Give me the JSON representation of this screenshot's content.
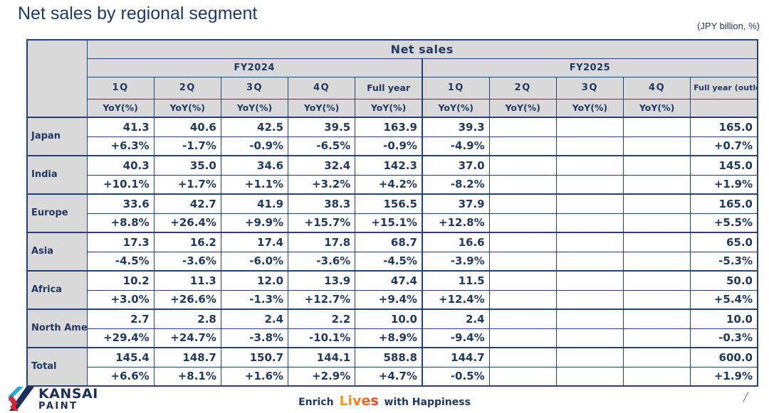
{
  "page": {
    "title": "Net sales by regional segment",
    "unit_note": "(JPY billion, %)",
    "page_divider": "/"
  },
  "table": {
    "title": "Net sales",
    "yoy_label": "YoY(%)",
    "groups": [
      {
        "label": "FY2024",
        "quarters": [
          "1Q",
          "2Q",
          "3Q",
          "4Q",
          "Full year"
        ]
      },
      {
        "label": "FY2025",
        "quarters": [
          "1Q",
          "2Q",
          "3Q",
          "4Q",
          "Full year (outlook)"
        ]
      }
    ],
    "rows": [
      {
        "region": "Japan",
        "values": [
          "41.3",
          "40.6",
          "42.5",
          "39.5",
          "163.9",
          "39.3",
          "",
          "",
          "",
          "165.0"
        ],
        "yoy": [
          "+6.3%",
          "-1.7%",
          "-0.9%",
          "-6.5%",
          "-0.9%",
          "-4.9%",
          "",
          "",
          "",
          "+0.7%"
        ]
      },
      {
        "region": "India",
        "values": [
          "40.3",
          "35.0",
          "34.6",
          "32.4",
          "142.3",
          "37.0",
          "",
          "",
          "",
          "145.0"
        ],
        "yoy": [
          "+10.1%",
          "+1.7%",
          "+1.1%",
          "+3.2%",
          "+4.2%",
          "-8.2%",
          "",
          "",
          "",
          "+1.9%"
        ]
      },
      {
        "region": "Europe",
        "values": [
          "33.6",
          "42.7",
          "41.9",
          "38.3",
          "156.5",
          "37.9",
          "",
          "",
          "",
          "165.0"
        ],
        "yoy": [
          "+8.8%",
          "+26.4%",
          "+9.9%",
          "+15.7%",
          "+15.1%",
          "+12.8%",
          "",
          "",
          "",
          "+5.5%"
        ]
      },
      {
        "region": "Asia",
        "values": [
          "17.3",
          "16.2",
          "17.4",
          "17.8",
          "68.7",
          "16.6",
          "",
          "",
          "",
          "65.0"
        ],
        "yoy": [
          "-4.5%",
          "-3.6%",
          "-6.0%",
          "-3.6%",
          "-4.5%",
          "-3.9%",
          "",
          "",
          "",
          "-5.3%"
        ]
      },
      {
        "region": "Africa",
        "values": [
          "10.2",
          "11.3",
          "12.0",
          "13.9",
          "47.4",
          "11.5",
          "",
          "",
          "",
          "50.0"
        ],
        "yoy": [
          "+3.0%",
          "+26.6%",
          "-1.3%",
          "+12.7%",
          "+9.4%",
          "+12.4%",
          "",
          "",
          "",
          "+5.4%"
        ]
      },
      {
        "region": "North America",
        "values": [
          "2.7",
          "2.8",
          "2.4",
          "2.2",
          "10.0",
          "2.4",
          "",
          "",
          "",
          "10.0"
        ],
        "yoy": [
          "+29.4%",
          "+24.7%",
          "-3.8%",
          "-10.1%",
          "+8.9%",
          "-9.4%",
          "",
          "",
          "",
          "-0.3%"
        ]
      },
      {
        "region": "Total",
        "values": [
          "145.4",
          "148.7",
          "150.7",
          "144.1",
          "588.8",
          "144.7",
          "",
          "",
          "",
          "600.0"
        ],
        "yoy": [
          "+6.6%",
          "+8.1%",
          "+1.6%",
          "+2.9%",
          "+4.7%",
          "-0.5%",
          "",
          "",
          "",
          "+1.9%"
        ]
      }
    ]
  },
  "footer": {
    "brand_name": "KANSAI",
    "brand_sub": "PAINT",
    "tagline_left": "Enrich",
    "tagline_accent": "Lives",
    "tagline_right": "with Happiness"
  }
}
